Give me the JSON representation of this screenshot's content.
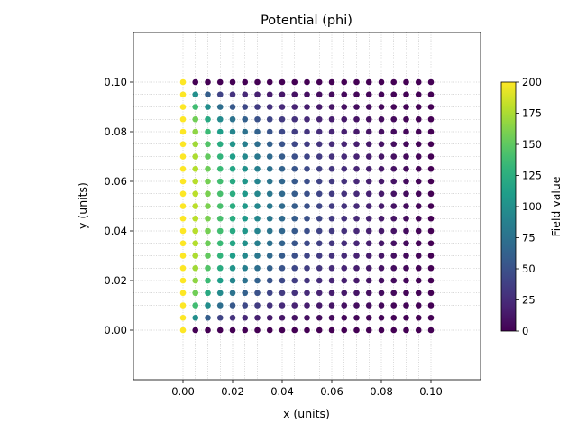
{
  "chart_data": {
    "type": "scatter",
    "title": "Potential (phi)",
    "xlabel": "x (units)",
    "ylabel": "y (units)",
    "xlim": [
      -0.02,
      0.12
    ],
    "ylim": [
      -0.02,
      0.12
    ],
    "x_ticks": [
      0.0,
      0.02,
      0.04,
      0.06,
      0.08,
      0.1
    ],
    "y_ticks": [
      0.0,
      0.02,
      0.04,
      0.06,
      0.08,
      0.1
    ],
    "x_tick_labels": [
      "0.00",
      "0.02",
      "0.04",
      "0.06",
      "0.08",
      "0.10"
    ],
    "y_tick_labels": [
      "0.00",
      "0.02",
      "0.04",
      "0.06",
      "0.08",
      "0.10"
    ],
    "grid": true,
    "grid_x": [
      0,
      0.005,
      0.01,
      0.015,
      0.02,
      0.025,
      0.03,
      0.035,
      0.04,
      0.045,
      0.05,
      0.055,
      0.06,
      0.065,
      0.07,
      0.075,
      0.08,
      0.085,
      0.09,
      0.095,
      0.1
    ],
    "grid_y": [
      0,
      0.005,
      0.01,
      0.015,
      0.02,
      0.025,
      0.03,
      0.035,
      0.04,
      0.045,
      0.05,
      0.055,
      0.06,
      0.065,
      0.07,
      0.075,
      0.08,
      0.085,
      0.09,
      0.095,
      0.1
    ],
    "colormap": "viridis",
    "colorbar": {
      "label": "Field value",
      "range": [
        0,
        200
      ],
      "ticks": [
        0,
        25,
        50,
        75,
        100,
        125,
        150,
        175,
        200
      ],
      "tick_labels": [
        "0",
        "25",
        "50",
        "75",
        "100",
        "125",
        "150",
        "175",
        "200"
      ]
    },
    "field": {
      "description": "phi on 21x21 grid: 200 at x=0 column, 0 on x=0.1, y=0 and y=0.1 boundaries; interior decays from left edge",
      "left_boundary": 200,
      "other_boundaries": 0,
      "grid_points": 21
    }
  }
}
